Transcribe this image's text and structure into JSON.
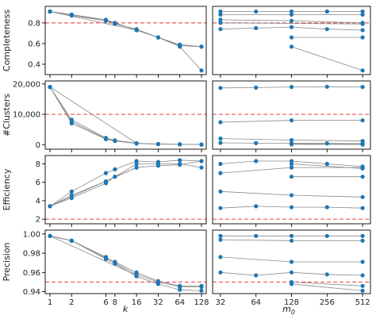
{
  "chart_data": [
    {
      "type": "scatter",
      "panel": "completeness-k",
      "ylabel": "Completeness",
      "x_axis": "k",
      "ylim": [
        0.3,
        0.96
      ],
      "yticks": [
        0.4,
        0.6,
        0.8
      ],
      "ytick_labels": [
        "0.4",
        "0.6",
        "0.8"
      ],
      "reference_line": 0.8,
      "lines": [
        [
          [
            1,
            0.91
          ],
          [
            2,
            0.88
          ],
          [
            6,
            0.83
          ],
          [
            8,
            0.8
          ],
          [
            16,
            0.73
          ],
          [
            32,
            0.66
          ],
          [
            64,
            0.59
          ],
          [
            128,
            0.57
          ]
        ],
        [
          [
            1,
            0.91
          ],
          [
            2,
            0.88
          ],
          [
            6,
            0.82
          ],
          [
            8,
            0.8
          ],
          [
            16,
            0.73
          ],
          [
            32,
            0.66
          ],
          [
            64,
            0.58
          ],
          [
            128,
            0.57
          ]
        ],
        [
          [
            1,
            0.91
          ],
          [
            2,
            0.87
          ],
          [
            6,
            0.82
          ],
          [
            8,
            0.79
          ],
          [
            16,
            0.74
          ],
          [
            32,
            0.66
          ],
          [
            64,
            0.57
          ],
          [
            128,
            0.34
          ]
        ],
        [
          [
            1,
            0.91
          ],
          [
            16,
            0.73
          ]
        ]
      ]
    },
    {
      "type": "scatter",
      "panel": "completeness-m0",
      "x_axis": "m0",
      "ylim": [
        0.3,
        0.96
      ],
      "reference_line": 0.8,
      "lines": [
        [
          [
            32,
            0.91
          ],
          [
            64,
            0.91
          ],
          [
            128,
            0.91
          ],
          [
            256,
            0.91
          ],
          [
            512,
            0.91
          ]
        ],
        [
          [
            32,
            0.88
          ],
          [
            128,
            0.88
          ],
          [
            512,
            0.88
          ]
        ],
        [
          [
            32,
            0.83
          ],
          [
            128,
            0.82
          ],
          [
            512,
            0.8
          ]
        ],
        [
          [
            32,
            0.8
          ],
          [
            512,
            0.79
          ]
        ],
        [
          [
            32,
            0.74
          ],
          [
            64,
            0.75
          ],
          [
            128,
            0.76
          ],
          [
            256,
            0.74
          ],
          [
            512,
            0.73
          ]
        ],
        [
          [
            128,
            0.66
          ],
          [
            512,
            0.66
          ]
        ],
        [
          [
            128,
            0.57
          ],
          [
            512,
            0.34
          ]
        ]
      ]
    },
    {
      "type": "scatter",
      "panel": "clusters-k",
      "ylabel": "#Clusters",
      "x_axis": "k",
      "ylim": [
        -1500,
        21000
      ],
      "yticks": [
        0,
        10000,
        20000
      ],
      "ytick_labels": [
        "0",
        "10,000",
        "20,000"
      ],
      "reference_line": 10000,
      "lines": [
        [
          [
            1,
            19000
          ],
          [
            2,
            7500
          ],
          [
            6,
            2000
          ],
          [
            8,
            1300
          ],
          [
            16,
            400
          ],
          [
            32,
            200
          ],
          [
            64,
            100
          ],
          [
            128,
            50
          ]
        ],
        [
          [
            1,
            19000
          ],
          [
            2,
            8200
          ],
          [
            6,
            2200
          ],
          [
            8,
            1400
          ],
          [
            16,
            450
          ],
          [
            32,
            200
          ],
          [
            64,
            100
          ],
          [
            128,
            50
          ]
        ],
        [
          [
            1,
            19000
          ],
          [
            2,
            7000
          ],
          [
            6,
            1800
          ],
          [
            8,
            1200
          ],
          [
            16,
            350
          ],
          [
            32,
            180
          ],
          [
            64,
            90
          ],
          [
            128,
            40
          ]
        ],
        [
          [
            1,
            19000
          ],
          [
            16,
            450
          ]
        ]
      ]
    },
    {
      "type": "scatter",
      "panel": "clusters-m0",
      "x_axis": "m0",
      "ylim": [
        -1500,
        21000
      ],
      "reference_line": 10000,
      "lines": [
        [
          [
            32,
            18700
          ],
          [
            64,
            18800
          ],
          [
            128,
            19000
          ],
          [
            256,
            19100
          ],
          [
            512,
            19000
          ]
        ],
        [
          [
            32,
            7400
          ],
          [
            128,
            8000
          ],
          [
            512,
            8000
          ]
        ],
        [
          [
            32,
            2000
          ],
          [
            128,
            1500
          ],
          [
            512,
            1200
          ]
        ],
        [
          [
            32,
            600
          ],
          [
            64,
            500
          ],
          [
            128,
            450
          ],
          [
            256,
            400
          ],
          [
            512,
            350
          ]
        ],
        [
          [
            128,
            200
          ],
          [
            512,
            150
          ]
        ],
        [
          [
            128,
            100
          ],
          [
            512,
            50
          ]
        ]
      ]
    },
    {
      "type": "scatter",
      "panel": "efficiency-k",
      "ylabel": "Efficiency",
      "x_axis": "k",
      "ylim": [
        1.5,
        8.9
      ],
      "yticks": [
        2,
        4,
        6,
        8
      ],
      "ytick_labels": [
        "2",
        "4",
        "6",
        "8"
      ],
      "reference_line": 2,
      "lines": [
        [
          [
            1,
            3.4
          ],
          [
            2,
            4.6
          ],
          [
            6,
            6.1
          ],
          [
            8,
            6.6
          ],
          [
            16,
            8.0
          ],
          [
            32,
            8.0
          ],
          [
            64,
            8.0
          ],
          [
            128,
            7.6
          ]
        ],
        [
          [
            1,
            3.4
          ],
          [
            2,
            5.0
          ],
          [
            6,
            7.0
          ],
          [
            8,
            7.4
          ],
          [
            16,
            8.3
          ],
          [
            32,
            8.2
          ],
          [
            64,
            8.4
          ],
          [
            128,
            8.3
          ]
        ],
        [
          [
            1,
            3.4
          ],
          [
            2,
            4.3
          ],
          [
            6,
            5.9
          ],
          [
            8,
            6.6
          ],
          [
            16,
            7.6
          ],
          [
            32,
            7.8
          ],
          [
            64,
            7.9
          ],
          [
            128,
            8.3
          ]
        ],
        [
          [
            1,
            3.4
          ],
          [
            16,
            7.6
          ]
        ]
      ]
    },
    {
      "type": "scatter",
      "panel": "efficiency-m0",
      "x_axis": "m0",
      "ylim": [
        1.5,
        8.9
      ],
      "reference_line": 2,
      "lines": [
        [
          [
            32,
            8.0
          ],
          [
            64,
            8.3
          ],
          [
            128,
            8.3
          ],
          [
            256,
            8.0
          ],
          [
            512,
            7.7
          ]
        ],
        [
          [
            32,
            7.0
          ],
          [
            128,
            7.6
          ],
          [
            512,
            7.6
          ]
        ],
        [
          [
            32,
            5.0
          ],
          [
            128,
            4.6
          ],
          [
            512,
            4.4
          ]
        ],
        [
          [
            32,
            3.2
          ],
          [
            64,
            3.4
          ],
          [
            128,
            3.3
          ],
          [
            256,
            3.3
          ],
          [
            512,
            3.2
          ]
        ],
        [
          [
            128,
            6.6
          ],
          [
            512,
            6.6
          ]
        ],
        [
          [
            128,
            8.0
          ],
          [
            512,
            7.5
          ]
        ]
      ]
    },
    {
      "type": "scatter",
      "panel": "precision-k",
      "ylabel": "Precision",
      "x_axis": "k",
      "xlabel": "k",
      "ylim": [
        0.938,
        1.004
      ],
      "yticks": [
        0.94,
        0.96,
        0.98,
        1.0
      ],
      "ytick_labels": [
        "0.94",
        "0.96",
        "0.98",
        "1.00"
      ],
      "reference_line": 0.95,
      "lines": [
        [
          [
            1,
            0.998
          ],
          [
            2,
            0.993
          ],
          [
            6,
            0.976
          ],
          [
            8,
            0.97
          ],
          [
            16,
            0.958
          ],
          [
            32,
            0.95
          ],
          [
            64,
            0.945
          ],
          [
            128,
            0.945
          ]
        ],
        [
          [
            1,
            0.998
          ],
          [
            2,
            0.993
          ],
          [
            6,
            0.975
          ],
          [
            8,
            0.971
          ],
          [
            16,
            0.96
          ],
          [
            32,
            0.951
          ],
          [
            64,
            0.946
          ],
          [
            128,
            0.946
          ]
        ],
        [
          [
            1,
            0.998
          ],
          [
            2,
            0.993
          ],
          [
            6,
            0.974
          ],
          [
            8,
            0.969
          ],
          [
            16,
            0.956
          ],
          [
            32,
            0.948
          ],
          [
            64,
            0.942
          ],
          [
            128,
            0.941
          ]
        ],
        [
          [
            1,
            0.998
          ],
          [
            16,
            0.957
          ]
        ]
      ]
    },
    {
      "type": "scatter",
      "panel": "precision-m0",
      "x_axis": "m0",
      "xlabel": "m0",
      "ylim": [
        0.938,
        1.004
      ],
      "reference_line": 0.95,
      "lines": [
        [
          [
            32,
            0.998
          ],
          [
            64,
            0.998
          ],
          [
            128,
            0.998
          ],
          [
            256,
            0.998
          ],
          [
            512,
            0.998
          ]
        ],
        [
          [
            32,
            0.994
          ],
          [
            128,
            0.993
          ],
          [
            512,
            0.993
          ]
        ],
        [
          [
            32,
            0.976
          ],
          [
            128,
            0.971
          ],
          [
            512,
            0.971
          ]
        ],
        [
          [
            32,
            0.96
          ],
          [
            64,
            0.957
          ],
          [
            128,
            0.96
          ],
          [
            256,
            0.958
          ],
          [
            512,
            0.957
          ]
        ],
        [
          [
            128,
            0.95
          ],
          [
            512,
            0.946
          ]
        ],
        [
          [
            128,
            0.948
          ],
          [
            512,
            0.941
          ]
        ]
      ]
    }
  ],
  "axes": {
    "k_ticks": [
      1,
      2,
      6,
      8,
      16,
      32,
      64,
      128
    ],
    "k_tick_labels": [
      "1",
      "2",
      "6",
      "8",
      "16",
      "32",
      "64",
      "128"
    ],
    "m0_ticks": [
      32,
      64,
      128,
      256,
      512
    ],
    "m0_tick_labels": [
      "32",
      "64",
      "128",
      "256",
      "512"
    ],
    "xlabel_k": "k",
    "xlabel_m0": "m",
    "xlabel_m0_subscript": "0"
  },
  "colors": {
    "marker": "#1f77b4",
    "line": "#888888",
    "reference": "#e8585a",
    "frame": "#000000"
  }
}
